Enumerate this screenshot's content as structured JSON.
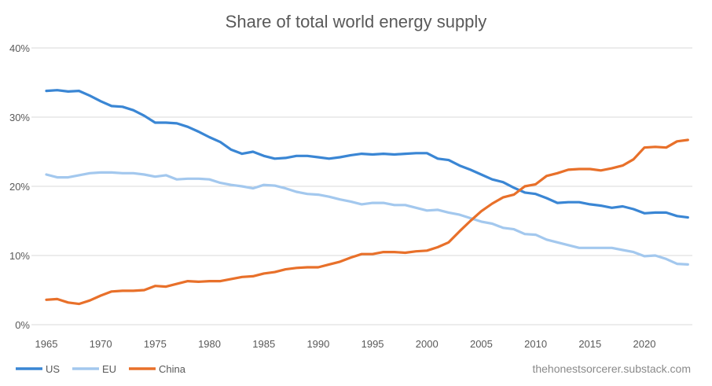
{
  "chart_data": {
    "type": "line",
    "title": "Share of total world energy supply",
    "xlabel": "",
    "ylabel": "",
    "xlim": [
      1965,
      2024
    ],
    "ylim": [
      0,
      40
    ],
    "grid": true,
    "legend_position": "bottom-left",
    "y_ticks": [
      "0%",
      "10%",
      "20%",
      "30%",
      "40%"
    ],
    "y_tick_values": [
      0,
      10,
      20,
      30,
      40
    ],
    "x_ticks": [
      "1965",
      "1970",
      "1975",
      "1980",
      "1985",
      "1990",
      "1995",
      "2000",
      "2005",
      "2010",
      "2015",
      "2020"
    ],
    "x_start": 1965,
    "series": [
      {
        "name": "US",
        "color": "#3A86D4",
        "values": [
          33.8,
          33.9,
          33.7,
          33.8,
          33.1,
          32.3,
          31.6,
          31.5,
          31.0,
          30.2,
          29.2,
          29.2,
          29.1,
          28.6,
          27.9,
          27.1,
          26.4,
          25.3,
          24.7,
          25.0,
          24.4,
          24.0,
          24.1,
          24.4,
          24.4,
          24.2,
          24.0,
          24.2,
          24.5,
          24.7,
          24.6,
          24.7,
          24.6,
          24.7,
          24.8,
          24.8,
          24.0,
          23.8,
          23.0,
          22.4,
          21.7,
          21.0,
          20.6,
          19.8,
          19.1,
          18.9,
          18.3,
          17.6,
          17.7,
          17.7,
          17.4,
          17.2,
          16.9,
          17.1,
          16.7,
          16.1,
          16.2,
          16.2,
          15.7,
          15.5
        ]
      },
      {
        "name": "EU",
        "color": "#A3C8EE",
        "values": [
          21.7,
          21.3,
          21.3,
          21.6,
          21.9,
          22.0,
          22.0,
          21.9,
          21.9,
          21.7,
          21.4,
          21.6,
          21.0,
          21.1,
          21.1,
          21.0,
          20.5,
          20.2,
          20.0,
          19.7,
          20.2,
          20.1,
          19.7,
          19.2,
          18.9,
          18.8,
          18.5,
          18.1,
          17.8,
          17.4,
          17.6,
          17.6,
          17.3,
          17.3,
          16.9,
          16.5,
          16.6,
          16.2,
          15.9,
          15.4,
          14.9,
          14.6,
          14.0,
          13.8,
          13.1,
          13.0,
          12.3,
          11.9,
          11.5,
          11.1,
          11.1,
          11.1,
          11.1,
          10.8,
          10.5,
          9.9,
          10.0,
          9.5,
          8.8,
          8.7
        ]
      },
      {
        "name": "China",
        "color": "#E8702A",
        "values": [
          3.6,
          3.7,
          3.2,
          3.0,
          3.5,
          4.2,
          4.8,
          4.9,
          4.9,
          5.0,
          5.6,
          5.5,
          5.9,
          6.3,
          6.2,
          6.3,
          6.3,
          6.6,
          6.9,
          7.0,
          7.4,
          7.6,
          8.0,
          8.2,
          8.3,
          8.3,
          8.7,
          9.1,
          9.7,
          10.2,
          10.2,
          10.5,
          10.5,
          10.4,
          10.6,
          10.7,
          11.2,
          11.9,
          13.5,
          15.0,
          16.4,
          17.5,
          18.4,
          18.8,
          20.0,
          20.3,
          21.5,
          21.9,
          22.4,
          22.5,
          22.5,
          22.3,
          22.6,
          23.0,
          23.9,
          25.6,
          25.7,
          25.6,
          26.5,
          26.7
        ]
      }
    ],
    "annotations": [
      "thehonestsorcerer.substack.com"
    ]
  }
}
